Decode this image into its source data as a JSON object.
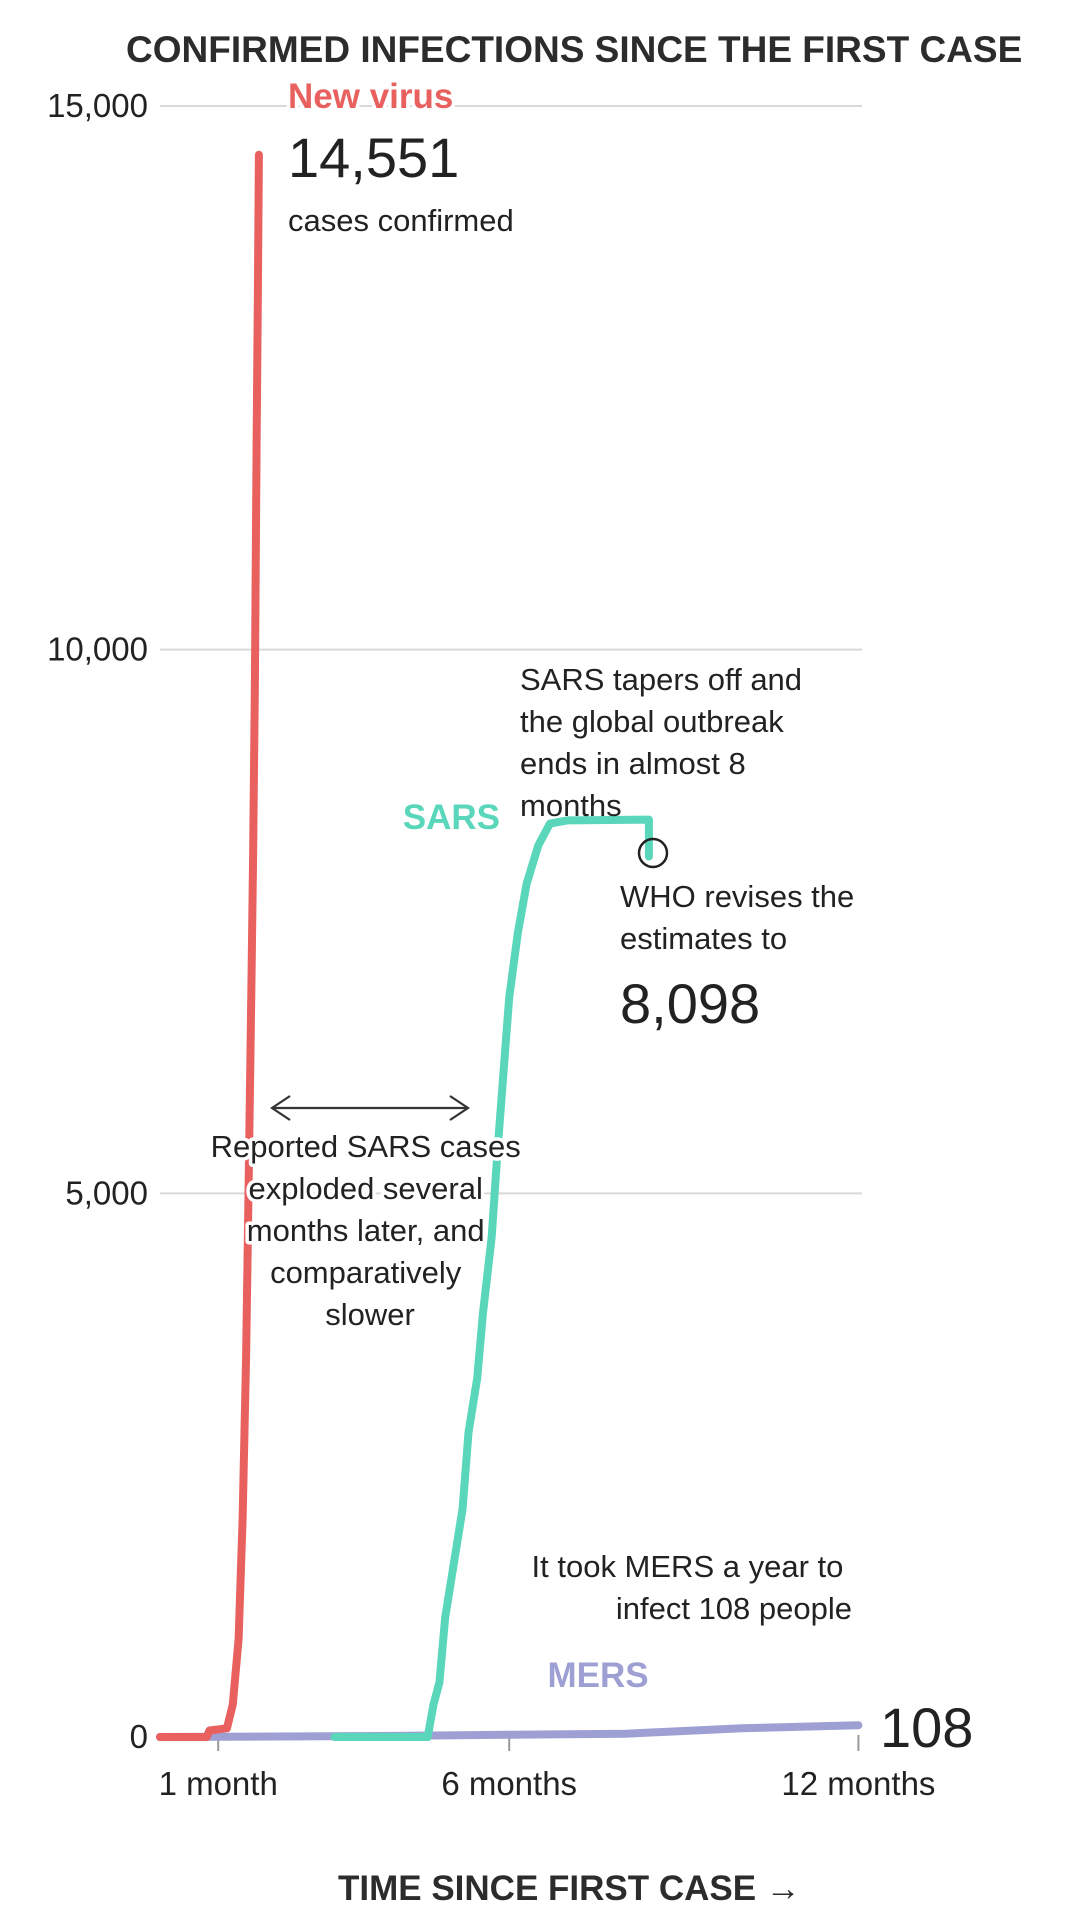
{
  "chart_data": {
    "type": "line",
    "title": "CONFIRMED INFECTIONS SINCE THE FIRST CASE",
    "xlabel": "TIME SINCE FIRST CASE →",
    "ylabel": "",
    "ylim": [
      0,
      15000
    ],
    "xlim_months": [
      -0.05,
      13.5
    ],
    "yticks": [
      {
        "value": 0,
        "label": "0"
      },
      {
        "value": 5000,
        "label": "5,000"
      },
      {
        "value": 10000,
        "label": "10,000"
      },
      {
        "value": 15000,
        "label": "15,000"
      }
    ],
    "xticks": [
      {
        "value": 1,
        "label": "1 month"
      },
      {
        "value": 6,
        "label": "6 months"
      },
      {
        "value": 12,
        "label": "12 months"
      }
    ],
    "grid": true,
    "legend": "direct labels on series",
    "series": [
      {
        "name": "New virus",
        "color": "#e8615f",
        "end_value_label": "14,551",
        "end_value_caption": "cases confirmed",
        "points": [
          {
            "x": 0.0,
            "y": 0
          },
          {
            "x": 0.8,
            "y": 0
          },
          {
            "x": 0.85,
            "y": 60
          },
          {
            "x": 1.15,
            "y": 80
          },
          {
            "x": 1.25,
            "y": 300
          },
          {
            "x": 1.35,
            "y": 900
          },
          {
            "x": 1.42,
            "y": 2000
          },
          {
            "x": 1.48,
            "y": 3500
          },
          {
            "x": 1.52,
            "y": 5000
          },
          {
            "x": 1.57,
            "y": 6900
          },
          {
            "x": 1.6,
            "y": 8100
          },
          {
            "x": 1.63,
            "y": 9700
          },
          {
            "x": 1.66,
            "y": 11900
          },
          {
            "x": 1.68,
            "y": 13200
          },
          {
            "x": 1.7,
            "y": 14551
          }
        ]
      },
      {
        "name": "SARS",
        "color": "#5ad6ba",
        "points": [
          {
            "x": 3.0,
            "y": 0
          },
          {
            "x": 4.6,
            "y": 0
          },
          {
            "x": 4.7,
            "y": 300
          },
          {
            "x": 4.8,
            "y": 500
          },
          {
            "x": 4.9,
            "y": 1100
          },
          {
            "x": 5.05,
            "y": 1600
          },
          {
            "x": 5.2,
            "y": 2100
          },
          {
            "x": 5.3,
            "y": 2800
          },
          {
            "x": 5.45,
            "y": 3300
          },
          {
            "x": 5.55,
            "y": 3900
          },
          {
            "x": 5.7,
            "y": 4600
          },
          {
            "x": 5.8,
            "y": 5400
          },
          {
            "x": 5.9,
            "y": 6100
          },
          {
            "x": 6.0,
            "y": 6800
          },
          {
            "x": 6.15,
            "y": 7400
          },
          {
            "x": 6.3,
            "y": 7850
          },
          {
            "x": 6.5,
            "y": 8200
          },
          {
            "x": 6.7,
            "y": 8400
          },
          {
            "x": 7.0,
            "y": 8430
          },
          {
            "x": 8.4,
            "y": 8437
          },
          {
            "x": 8.4,
            "y": 8098
          }
        ]
      },
      {
        "name": "MERS",
        "color": "#9ea0d3",
        "end_value_label": "108",
        "points": [
          {
            "x": 0.0,
            "y": 0
          },
          {
            "x": 2.0,
            "y": 5
          },
          {
            "x": 4.0,
            "y": 10
          },
          {
            "x": 6.0,
            "y": 20
          },
          {
            "x": 8.0,
            "y": 30
          },
          {
            "x": 9.0,
            "y": 55
          },
          {
            "x": 10.0,
            "y": 80
          },
          {
            "x": 11.0,
            "y": 95
          },
          {
            "x": 12.0,
            "y": 108
          }
        ]
      }
    ],
    "annotations": {
      "sars_tapers": [
        "SARS tapers off and",
        "the global outbreak",
        "ends in almost 8",
        "months"
      ],
      "who_revises": [
        "WHO revises the",
        "estimates to"
      ],
      "who_value": "8,098",
      "sars_delay": [
        "Reported SARS cases",
        "exploded several",
        "months later, and",
        "comparatively",
        "slower"
      ],
      "mers_year": [
        "It took MERS a year to",
        "infect 108 people"
      ]
    }
  }
}
